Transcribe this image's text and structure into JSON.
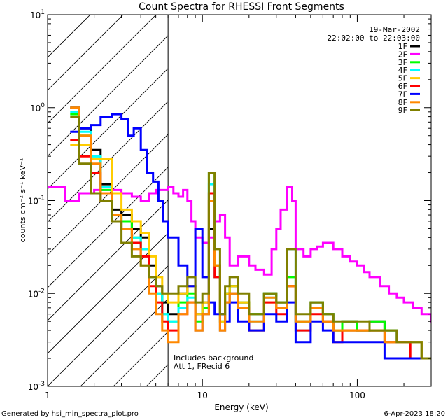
{
  "chart_data": {
    "type": "line",
    "title": "Count Spectra for RHESSI Front Segments",
    "xlabel": "Energy (keV)",
    "ylabel": "counts cm⁻² s⁻¹ keV⁻¹",
    "x_scale": "log",
    "y_scale": "log",
    "xlim": [
      1,
      300
    ],
    "ylim": [
      0.001,
      10
    ],
    "x_ticks": [
      {
        "value": 1,
        "label": "1"
      },
      {
        "value": 10,
        "label": "10"
      },
      {
        "value": 100,
        "label": "100"
      }
    ],
    "y_ticks": [
      {
        "value": 0.001,
        "base": "10",
        "exp": "-3"
      },
      {
        "value": 0.01,
        "base": "10",
        "exp": "-2"
      },
      {
        "value": 0.1,
        "base": "10",
        "exp": "-1"
      },
      {
        "value": 1,
        "base": "10",
        "exp": "0"
      },
      {
        "value": 10,
        "base": "10",
        "exp": "1"
      }
    ],
    "hatch_region_max_energy": 6,
    "date": "19-Mar-2002",
    "time_range": "22:02:00 to 22:03:00",
    "annotation_lines": [
      "Includes background",
      "Att 1, FRecid 6"
    ],
    "legend_position": "top-right",
    "series": [
      {
        "name": "1F",
        "color": "#000000",
        "x": [
          1.4,
          1.6,
          1.9,
          2.2,
          2.6,
          3.0,
          3.5,
          4.0,
          4.5,
          5.0,
          5.5,
          6.0,
          7,
          8,
          9,
          10,
          11,
          12,
          13,
          14,
          15,
          17,
          20,
          25,
          30,
          35,
          40,
          50,
          60,
          70,
          80,
          100,
          120,
          150,
          180,
          220,
          260,
          300
        ],
        "y": [
          1.0,
          0.6,
          0.35,
          0.15,
          0.08,
          0.07,
          0.05,
          0.04,
          0.02,
          0.012,
          0.008,
          0.006,
          0.01,
          0.012,
          0.006,
          0.008,
          0.05,
          0.02,
          0.006,
          0.01,
          0.012,
          0.008,
          0.006,
          0.01,
          0.008,
          0.012,
          0.005,
          0.008,
          0.006,
          0.004,
          0.005,
          0.004,
          0.005,
          0.004,
          0.003,
          0.003,
          0.002,
          0.002
        ]
      },
      {
        "name": "2F",
        "color": "#ff00ff",
        "x": [
          1.0,
          1.3,
          1.6,
          2.0,
          2.5,
          3.0,
          3.5,
          4.0,
          4.5,
          5.0,
          5.5,
          6.0,
          6.5,
          7,
          7.5,
          8,
          8.5,
          9,
          10,
          11,
          12,
          13,
          14,
          15,
          17,
          20,
          22,
          25,
          28,
          30,
          32,
          35,
          38,
          40,
          45,
          50,
          55,
          60,
          70,
          80,
          90,
          100,
          110,
          120,
          140,
          160,
          180,
          200,
          230,
          260,
          300
        ],
        "y": [
          0.14,
          0.1,
          0.12,
          0.13,
          0.13,
          0.12,
          0.11,
          0.1,
          0.12,
          0.13,
          0.13,
          0.14,
          0.12,
          0.11,
          0.13,
          0.1,
          0.06,
          0.04,
          0.035,
          0.04,
          0.06,
          0.07,
          0.04,
          0.02,
          0.025,
          0.02,
          0.018,
          0.016,
          0.03,
          0.05,
          0.08,
          0.14,
          0.1,
          0.03,
          0.025,
          0.03,
          0.032,
          0.035,
          0.03,
          0.025,
          0.022,
          0.02,
          0.017,
          0.015,
          0.012,
          0.01,
          0.009,
          0.008,
          0.007,
          0.006,
          0.005
        ]
      },
      {
        "name": "3F",
        "color": "#00ff00",
        "x": [
          1.4,
          1.6,
          1.9,
          2.2,
          2.6,
          3.0,
          3.5,
          4.0,
          4.5,
          5.0,
          5.5,
          6.0,
          7,
          8,
          9,
          10,
          11,
          12,
          13,
          14,
          15,
          17,
          20,
          25,
          30,
          35,
          40,
          50,
          60,
          70,
          80,
          100,
          120,
          150,
          180,
          220,
          260,
          300
        ],
        "y": [
          0.85,
          0.5,
          0.3,
          0.13,
          0.07,
          0.06,
          0.04,
          0.03,
          0.015,
          0.01,
          0.006,
          0.005,
          0.008,
          0.01,
          0.005,
          0.007,
          0.2,
          0.02,
          0.005,
          0.01,
          0.012,
          0.008,
          0.006,
          0.01,
          0.008,
          0.015,
          0.005,
          0.008,
          0.006,
          0.004,
          0.005,
          0.004,
          0.005,
          0.004,
          0.003,
          0.003,
          0.002,
          0.002
        ]
      },
      {
        "name": "4F",
        "color": "#00ffff",
        "x": [
          1.4,
          1.6,
          1.9,
          2.2,
          2.6,
          3.0,
          3.5,
          4.0,
          4.5,
          5.0,
          5.5,
          6.0,
          7,
          8,
          9,
          10,
          11,
          12,
          13,
          14,
          15,
          17,
          20,
          25,
          30,
          35,
          40,
          50,
          60,
          70,
          80,
          100,
          120,
          150,
          180,
          220,
          260,
          300
        ],
        "y": [
          0.9,
          0.55,
          0.3,
          0.14,
          0.07,
          0.05,
          0.04,
          0.03,
          0.015,
          0.01,
          0.006,
          0.005,
          0.007,
          0.009,
          0.004,
          0.006,
          0.15,
          0.015,
          0.004,
          0.008,
          0.01,
          0.007,
          0.005,
          0.009,
          0.007,
          0.03,
          0.004,
          0.007,
          0.005,
          0.004,
          0.004,
          0.004,
          0.004,
          0.003,
          0.003,
          0.003,
          0.002,
          0.002
        ]
      },
      {
        "name": "5F",
        "color": "#ffcc00",
        "x": [
          1.4,
          1.6,
          1.9,
          2.2,
          2.6,
          3.0,
          3.5,
          4.0,
          4.5,
          5.0,
          5.5,
          6.0,
          7,
          8,
          9,
          10,
          11,
          12,
          13,
          14,
          15,
          17,
          20,
          25,
          30,
          35,
          40,
          50,
          60,
          70,
          80,
          100,
          120,
          150,
          180,
          220,
          260,
          300
        ],
        "y": [
          0.4,
          0.4,
          0.28,
          0.28,
          0.12,
          0.08,
          0.06,
          0.045,
          0.025,
          0.015,
          0.01,
          0.008,
          0.01,
          0.012,
          0.006,
          0.008,
          0.1,
          0.02,
          0.005,
          0.01,
          0.012,
          0.008,
          0.004,
          0.008,
          0.007,
          0.012,
          0.005,
          0.007,
          0.005,
          0.004,
          0.004,
          0.004,
          0.004,
          0.003,
          0.003,
          0.003,
          0.002,
          0.002
        ]
      },
      {
        "name": "6F",
        "color": "#ff0000",
        "x": [
          1.4,
          1.6,
          1.9,
          2.2,
          2.6,
          3.0,
          3.5,
          4.0,
          4.5,
          5.0,
          5.5,
          6.0,
          7,
          8,
          9,
          10,
          11,
          12,
          13,
          14,
          15,
          17,
          20,
          25,
          30,
          35,
          40,
          50,
          60,
          70,
          80,
          100,
          120,
          150,
          180,
          220,
          260,
          300
        ],
        "y": [
          0.45,
          0.3,
          0.2,
          0.1,
          0.06,
          0.05,
          0.035,
          0.025,
          0.012,
          0.008,
          0.005,
          0.004,
          0.006,
          0.008,
          0.004,
          0.006,
          0.12,
          0.015,
          0.004,
          0.008,
          0.01,
          0.007,
          0.004,
          0.008,
          0.006,
          0.012,
          0.004,
          0.006,
          0.005,
          0.003,
          0.004,
          0.004,
          0.004,
          0.003,
          0.003,
          0.002,
          0.002,
          0.002
        ]
      },
      {
        "name": "7F",
        "color": "#0000ff",
        "x": [
          1.4,
          1.6,
          1.9,
          2.2,
          2.6,
          3.0,
          3.3,
          3.6,
          4.0,
          4.4,
          4.8,
          5.2,
          5.6,
          6.0,
          7,
          8,
          9,
          10,
          11,
          12,
          13,
          14,
          15,
          17,
          20,
          25,
          30,
          35,
          40,
          50,
          60,
          70,
          80,
          100,
          120,
          150,
          180,
          220,
          260,
          300
        ],
        "y": [
          0.55,
          0.6,
          0.65,
          0.8,
          0.85,
          0.75,
          0.5,
          0.6,
          0.35,
          0.2,
          0.16,
          0.1,
          0.06,
          0.04,
          0.02,
          0.012,
          0.05,
          0.015,
          0.008,
          0.006,
          0.006,
          0.005,
          0.008,
          0.005,
          0.004,
          0.006,
          0.005,
          0.008,
          0.003,
          0.005,
          0.004,
          0.003,
          0.003,
          0.003,
          0.003,
          0.002,
          0.002,
          0.002,
          0.002,
          0.002
        ]
      },
      {
        "name": "8F",
        "color": "#ff8800",
        "x": [
          1.4,
          1.6,
          1.9,
          2.2,
          2.6,
          3.0,
          3.5,
          4.0,
          4.5,
          5.0,
          5.5,
          6.0,
          7,
          8,
          9,
          10,
          11,
          12,
          13,
          14,
          15,
          17,
          20,
          25,
          30,
          35,
          40,
          50,
          60,
          70,
          80,
          100,
          120,
          150,
          180,
          220,
          260,
          300
        ],
        "y": [
          1.0,
          0.5,
          0.25,
          0.12,
          0.07,
          0.05,
          0.03,
          0.02,
          0.01,
          0.006,
          0.004,
          0.003,
          0.006,
          0.008,
          0.004,
          0.006,
          0.1,
          0.02,
          0.004,
          0.008,
          0.01,
          0.007,
          0.005,
          0.009,
          0.007,
          0.012,
          0.005,
          0.007,
          0.005,
          0.004,
          0.004,
          0.004,
          0.004,
          0.003,
          0.003,
          0.003,
          0.002,
          0.002
        ]
      },
      {
        "name": "9F",
        "color": "#808000",
        "x": [
          1.4,
          1.6,
          1.9,
          2.2,
          2.6,
          3.0,
          3.5,
          4.0,
          4.5,
          5.0,
          5.5,
          6.0,
          7,
          8,
          9,
          10,
          11,
          12,
          13,
          14,
          15,
          17,
          20,
          25,
          30,
          35,
          40,
          50,
          60,
          70,
          80,
          100,
          120,
          150,
          180,
          220,
          260,
          300
        ],
        "y": [
          0.8,
          0.25,
          0.12,
          0.1,
          0.06,
          0.035,
          0.025,
          0.02,
          0.015,
          0.012,
          0.01,
          0.01,
          0.012,
          0.015,
          0.008,
          0.01,
          0.2,
          0.03,
          0.006,
          0.012,
          0.015,
          0.01,
          0.006,
          0.01,
          0.008,
          0.03,
          0.006,
          0.008,
          0.006,
          0.005,
          0.005,
          0.005,
          0.004,
          0.004,
          0.003,
          0.003,
          0.002,
          0.002
        ]
      }
    ]
  },
  "footer": {
    "left": "Generated by hsi_min_spectra_plot.pro",
    "right": "6-Apr-2023 18:20"
  }
}
